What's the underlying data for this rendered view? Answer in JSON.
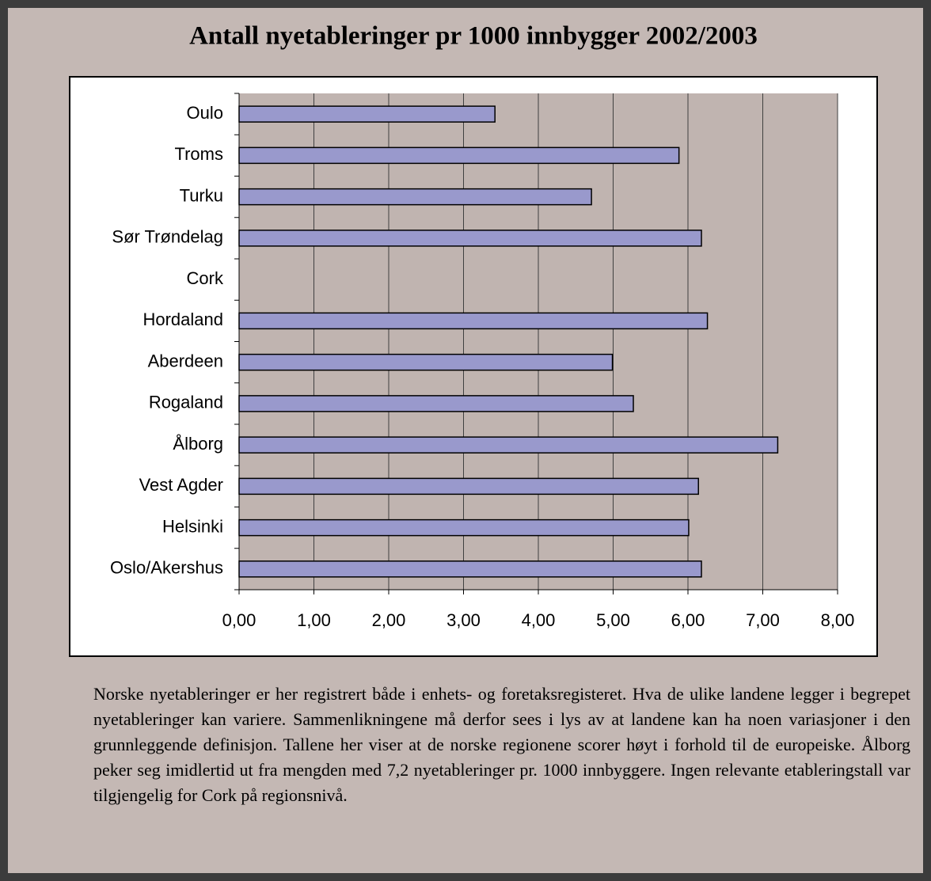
{
  "chart_data": {
    "type": "bar",
    "orientation": "horizontal",
    "title": "Antall nyetableringer pr 1000 innbygger 2002/2003",
    "categories": [
      "Oulo",
      "Troms",
      "Turku",
      "Sør Trøndelag",
      "Cork",
      "Hordaland",
      "Aberdeen",
      "Rogaland",
      "Ålborg",
      "Vest Agder",
      "Helsinki",
      "Oslo/Akershus"
    ],
    "values": [
      3.42,
      5.88,
      4.71,
      6.18,
      null,
      6.26,
      4.99,
      5.27,
      7.2,
      6.14,
      6.01,
      6.18
    ],
    "color": "#9999cc",
    "xlim": [
      0,
      8
    ],
    "xticks": [
      {
        "value": 0,
        "label": "0,00"
      },
      {
        "value": 1,
        "label": "1,00"
      },
      {
        "value": 2,
        "label": "2,00"
      },
      {
        "value": 3,
        "label": "3,00"
      },
      {
        "value": 4,
        "label": "4,00"
      },
      {
        "value": 5,
        "label": "5,00"
      },
      {
        "value": 6,
        "label": "6,00"
      },
      {
        "value": 7,
        "label": "7,00"
      },
      {
        "value": 8,
        "label": "8,00"
      }
    ],
    "grid": true
  },
  "paragraph": "Norske nyetableringer er her registrert både i enhets- og foretaksregisteret. Hva de ulike landene legger i begrepet nyetableringer kan variere. Sammenlikningene må derfor sees i lys av at landene kan ha noen variasjoner i den grunnleggende definisjon. Tallene her viser at de norske regionene scorer høyt i forhold til de europeiske. Ålborg peker seg imidlertid ut fra mengden med 7,2 nyetableringer pr. 1000 innbyggere. Ingen relevante etableringstall var tilgjengelig for Cork på regionsnivå."
}
